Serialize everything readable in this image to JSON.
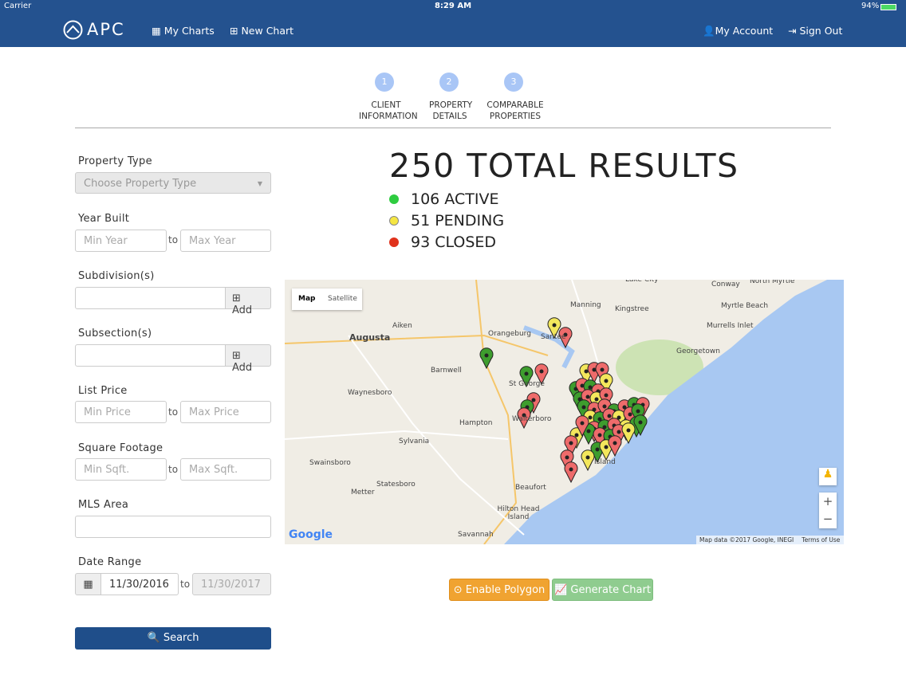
{
  "status_bar": {
    "carrier": "Carrier",
    "time": "8:29 AM",
    "battery": "94%"
  },
  "nav": {
    "brand": "APC",
    "left_links": [
      "My Charts",
      "New Chart"
    ],
    "right_links": [
      "My Account",
      "Sign Out"
    ]
  },
  "steps": [
    {
      "number": "1",
      "label": "CLIENT INFORMATION"
    },
    {
      "number": "2",
      "label": "PROPERTY DETAILS"
    },
    {
      "number": "3",
      "label": "COMPARABLE PROPERTIES"
    }
  ],
  "filters": {
    "property_type": {
      "label": "Property Type",
      "placeholder": "Choose Property Type"
    },
    "year_built": {
      "label": "Year Built",
      "min": "Min Year",
      "to": "to",
      "max": "Max Year"
    },
    "subdivision": {
      "label": "Subdivision(s)",
      "button": "Add"
    },
    "subsection": {
      "label": "Subsection(s)",
      "button": "Add"
    },
    "list_price": {
      "label": "List Price",
      "min": "Min Price",
      "to": "to",
      "max": "Max Price"
    },
    "square_footage": {
      "label": "Square Footage",
      "min": "Min Sqft.",
      "to": "to",
      "max": "Max Sqft."
    },
    "mls_area": {
      "label": "MLS Area"
    },
    "date_range": {
      "label": "Date Range",
      "start": "11/30/2016",
      "to": "to",
      "end": "11/30/2017"
    },
    "search": "Search"
  },
  "results": {
    "title": "250 TOTAL RESULTS",
    "legend": [
      "106 ACTIVE",
      "51 PENDING",
      "93 CLOSED"
    ]
  },
  "map": {
    "tabs": [
      "Map",
      "Satellite"
    ],
    "places": [
      "Augusta",
      "Aiken",
      "Orangeburg",
      "Santee",
      "Manning",
      "Kingstree",
      "Lake City",
      "Conway",
      "North Myrtle",
      "Myrtle Beach",
      "Murrells Inlet",
      "Georgetown",
      "Barnwell",
      "St George",
      "Waynesboro",
      "Walterboro",
      "Hampton",
      "Sylvania",
      "Swainsboro",
      "Statesboro",
      "Metter",
      "Beaufort",
      "Hilton Head Island",
      "Savannah",
      "Island"
    ],
    "attribution": "Map data ©2017 Google, INEGI",
    "terms": "Terms of Use",
    "logo": "Google",
    "zoom": [
      "+",
      "−"
    ]
  },
  "actions": [
    "Enable Polygon",
    "Generate Chart"
  ]
}
